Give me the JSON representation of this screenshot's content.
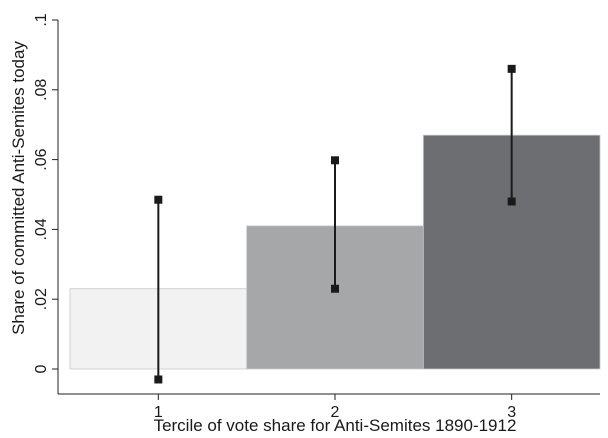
{
  "chart_data": {
    "type": "bar",
    "xlabel": "Tercile of vote share for Anti-Semites 1890-1912",
    "ylabel": "Share of committed Anti-Semites today",
    "categories": [
      "1",
      "2",
      "3"
    ],
    "values": [
      0.023,
      0.041,
      0.067
    ],
    "ci_lower": [
      -0.003,
      0.023,
      0.048
    ],
    "ci_upper": [
      0.0485,
      0.0598,
      0.086
    ],
    "ylim": [
      -0.005,
      0.1
    ],
    "yticks": [
      0,
      0.02,
      0.04,
      0.06,
      0.08,
      0.1
    ],
    "ytick_labels": [
      "0",
      ".02",
      ".04",
      ".06",
      ".08",
      ".1"
    ],
    "bar_colors": [
      "#f1f2f1",
      "#a6a7a9",
      "#6d6e71"
    ],
    "grid": false,
    "legend": "none"
  }
}
